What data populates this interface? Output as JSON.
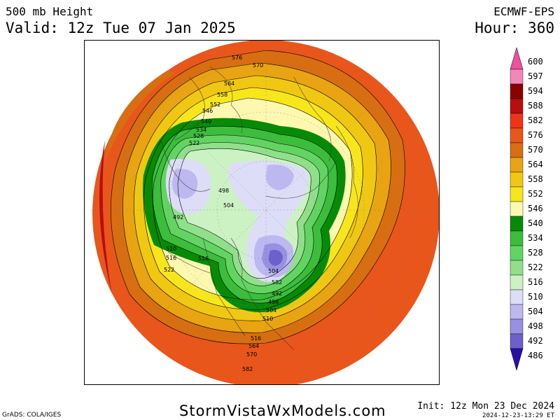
{
  "header": {
    "field_title": "500 mb Height",
    "valid_time": "Valid: 12z Tue 07 Jan 2025",
    "model": "ECMWF-EPS",
    "forecast_hour": "Hour: 360"
  },
  "footer": {
    "grads_credit": "GrADS: COLA/IGES",
    "website": "StormVistaWxModels.com",
    "init_time": "Init: 12z Mon 23 Dec 2024",
    "generated": "2024-12-23-13:29 ET"
  },
  "colorbar": {
    "levels": [
      {
        "value": "600",
        "color": "#f050a0"
      },
      {
        "value": "597",
        "color": "#f088b8"
      },
      {
        "value": "594",
        "color": "#8c0000"
      },
      {
        "value": "588",
        "color": "#b80e0e"
      },
      {
        "value": "582",
        "color": "#ee3418"
      },
      {
        "value": "576",
        "color": "#e8561c"
      },
      {
        "value": "570",
        "color": "#d86e12"
      },
      {
        "value": "564",
        "color": "#e8a412"
      },
      {
        "value": "558",
        "color": "#f0c814"
      },
      {
        "value": "552",
        "color": "#f8e61c"
      },
      {
        "value": "546",
        "color": "#fdf8b0"
      },
      {
        "value": "540",
        "color": "#078b07"
      },
      {
        "value": "534",
        "color": "#3cbd3c"
      },
      {
        "value": "528",
        "color": "#62d462"
      },
      {
        "value": "522",
        "color": "#90e08a"
      },
      {
        "value": "516",
        "color": "#ccf2c4"
      },
      {
        "value": "510",
        "color": "#ddddf8"
      },
      {
        "value": "504",
        "color": "#bdb8f0"
      },
      {
        "value": "498",
        "color": "#9890e0"
      },
      {
        "value": "492",
        "color": "#6e60cc"
      },
      {
        "value": "486",
        "color": "#2a10a8"
      }
    ],
    "top_arrow_color": "#f050a0",
    "bottom_arrow_color": "#2a10a8"
  },
  "map": {
    "projection": "polar stereographic (north pole)",
    "contour_labels": [
      "576",
      "570",
      "564",
      "558",
      "552",
      "546",
      "540",
      "534",
      "528",
      "522",
      "516",
      "510",
      "504",
      "498",
      "492",
      "582"
    ]
  }
}
